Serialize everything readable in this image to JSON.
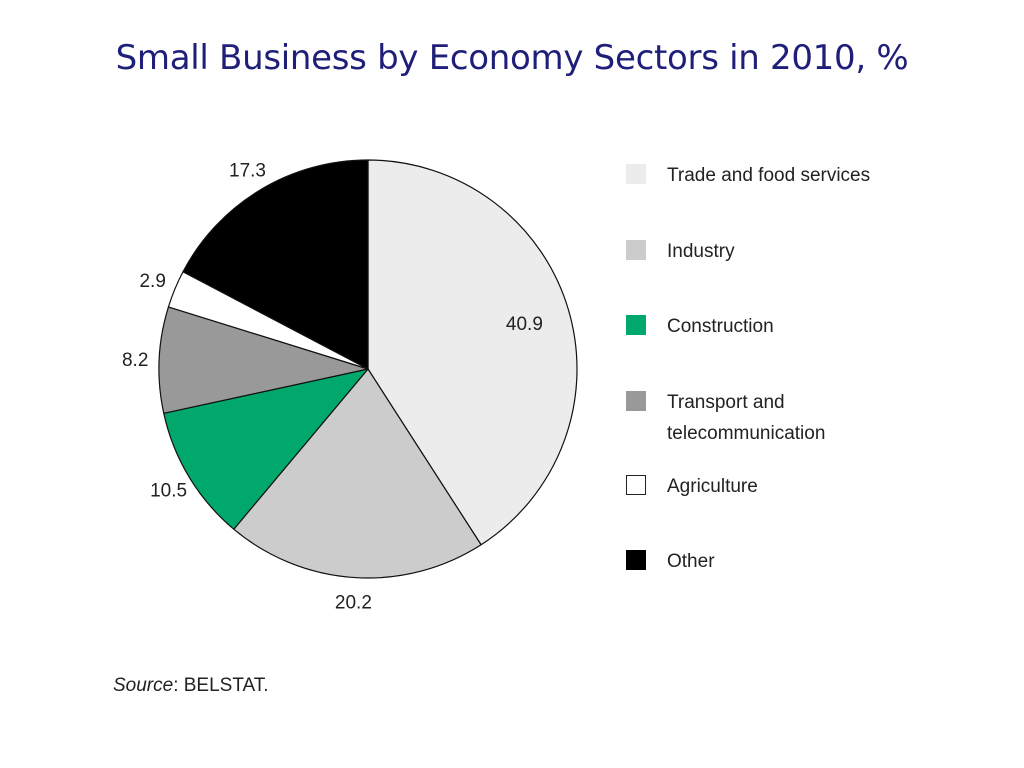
{
  "chart_data": {
    "type": "pie",
    "title": "Small Business by Economy Sectors in 2010, %",
    "categories": [
      "Trade and food services",
      "Industry",
      "Construction",
      "Transport and telecommunication",
      "Agriculture",
      "Other"
    ],
    "values": [
      40.9,
      20.2,
      10.5,
      8.2,
      2.9,
      17.3
    ],
    "colors": [
      "#ececec",
      "#cccccc",
      "#00a86b",
      "#999999",
      "#ffffff",
      "#000000"
    ],
    "start_angle_deg": 0,
    "direction": "clockwise",
    "data_labels": [
      "40.9",
      "20.2",
      "10.5",
      "8.2",
      "2.9",
      "17.3"
    ],
    "legend_position": "right"
  },
  "source": {
    "prefix": "Source",
    "text": ": BELSTAT."
  }
}
